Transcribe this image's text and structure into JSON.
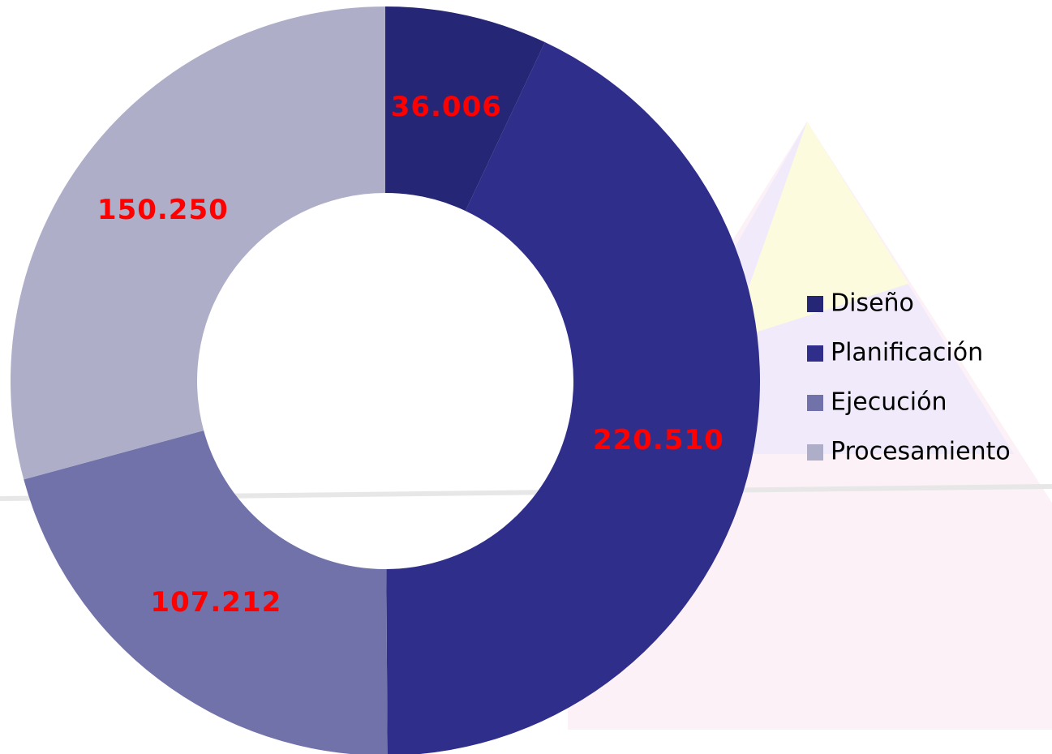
{
  "chart_data": {
    "type": "donut",
    "categories": [
      "Diseño",
      "Planificación",
      "Ejecución",
      "Procesamiento"
    ],
    "values": [
      36006,
      220510,
      107212,
      150250
    ],
    "value_labels": [
      "36.006",
      "220.510",
      "107.212",
      "150.250"
    ],
    "colors": [
      "#262676",
      "#2f2f8b",
      "#7272aa",
      "#aeaec9"
    ],
    "label_color": "#ff0000",
    "legend": "right"
  }
}
